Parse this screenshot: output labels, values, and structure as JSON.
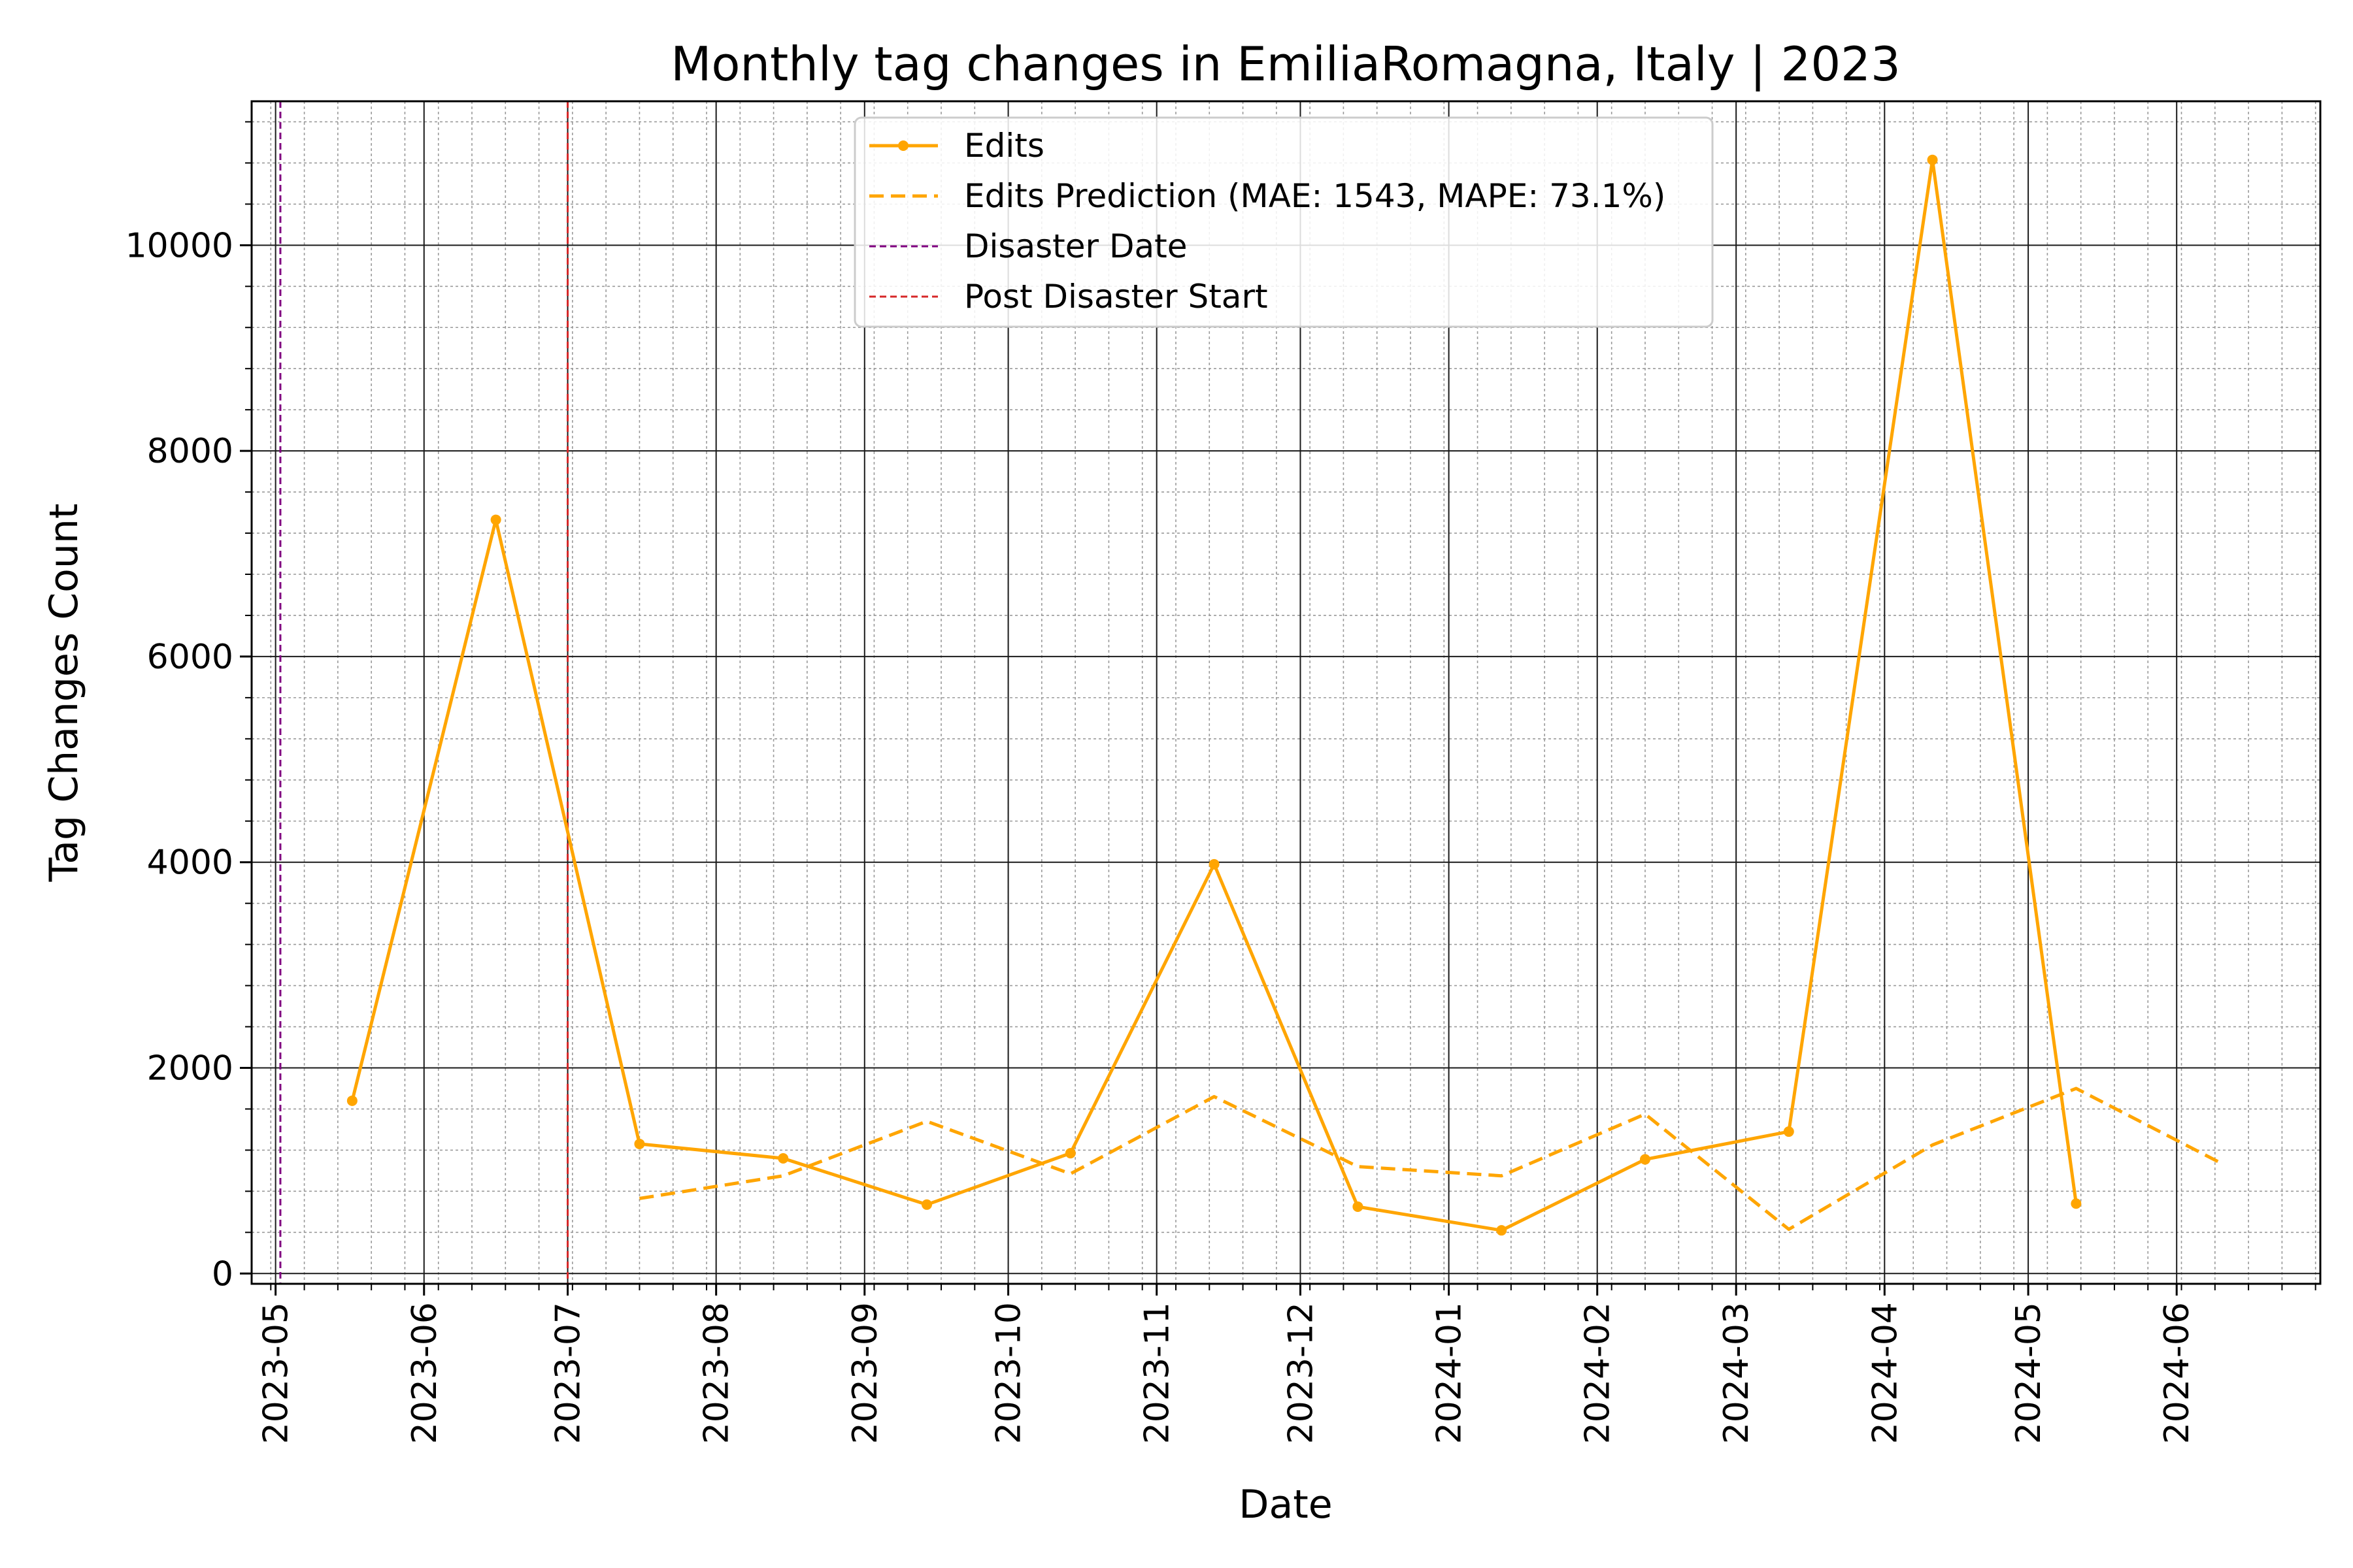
{
  "chart_data": {
    "type": "line",
    "title": "Monthly tag changes in EmiliaRomagna, Italy | 2023",
    "xlabel": "Date",
    "ylabel": "Tag Changes Count",
    "xlim": [
      "2023-04-26",
      "2024-07-01"
    ],
    "ylim": [
      -100,
      11400
    ],
    "x_ticks": [
      "2023-05-01",
      "2023-06-01",
      "2023-07-01",
      "2023-08-01",
      "2023-09-01",
      "2023-10-01",
      "2023-11-01",
      "2023-12-01",
      "2024-01-01",
      "2024-02-01",
      "2024-03-01",
      "2024-04-01",
      "2024-05-01",
      "2024-06-01"
    ],
    "y_ticks": [
      0,
      2000,
      4000,
      6000,
      8000,
      10000
    ],
    "grid": true,
    "legend_position": "top-center",
    "series": [
      {
        "name": "Edits",
        "style": "solid-markers",
        "color": "#FFA500",
        "points": [
          {
            "x": "2023-05-17",
            "y": 1680
          },
          {
            "x": "2023-06-16",
            "y": 7330
          },
          {
            "x": "2023-07-16",
            "y": 1260
          },
          {
            "x": "2023-08-15",
            "y": 1120
          },
          {
            "x": "2023-09-14",
            "y": 670
          },
          {
            "x": "2023-10-14",
            "y": 1170
          },
          {
            "x": "2023-11-13",
            "y": 3980
          },
          {
            "x": "2023-12-13",
            "y": 650
          },
          {
            "x": "2024-01-12",
            "y": 420
          },
          {
            "x": "2024-02-11",
            "y": 1110
          },
          {
            "x": "2024-03-12",
            "y": 1380
          },
          {
            "x": "2024-04-11",
            "y": 10830
          },
          {
            "x": "2024-05-11",
            "y": 680
          }
        ]
      },
      {
        "name": "Edits Prediction (MAE: 1543, MAPE: 73.1%)",
        "style": "dashed",
        "color": "#FFA500",
        "points": [
          {
            "x": "2023-07-16",
            "y": 730
          },
          {
            "x": "2023-08-15",
            "y": 950
          },
          {
            "x": "2023-09-14",
            "y": 1480
          },
          {
            "x": "2023-10-14",
            "y": 970
          },
          {
            "x": "2023-11-13",
            "y": 1720
          },
          {
            "x": "2023-12-13",
            "y": 1040
          },
          {
            "x": "2024-01-12",
            "y": 950
          },
          {
            "x": "2024-02-11",
            "y": 1550
          },
          {
            "x": "2024-03-12",
            "y": 430
          },
          {
            "x": "2024-04-11",
            "y": 1250
          },
          {
            "x": "2024-05-11",
            "y": 1800
          },
          {
            "x": "2024-06-10",
            "y": 1080
          }
        ]
      }
    ],
    "vlines": [
      {
        "name": "Disaster Date",
        "x": "2023-05-02",
        "color": "#800080"
      },
      {
        "name": "Post Disaster Start",
        "x": "2023-07-01",
        "color": "#D62728"
      }
    ]
  }
}
